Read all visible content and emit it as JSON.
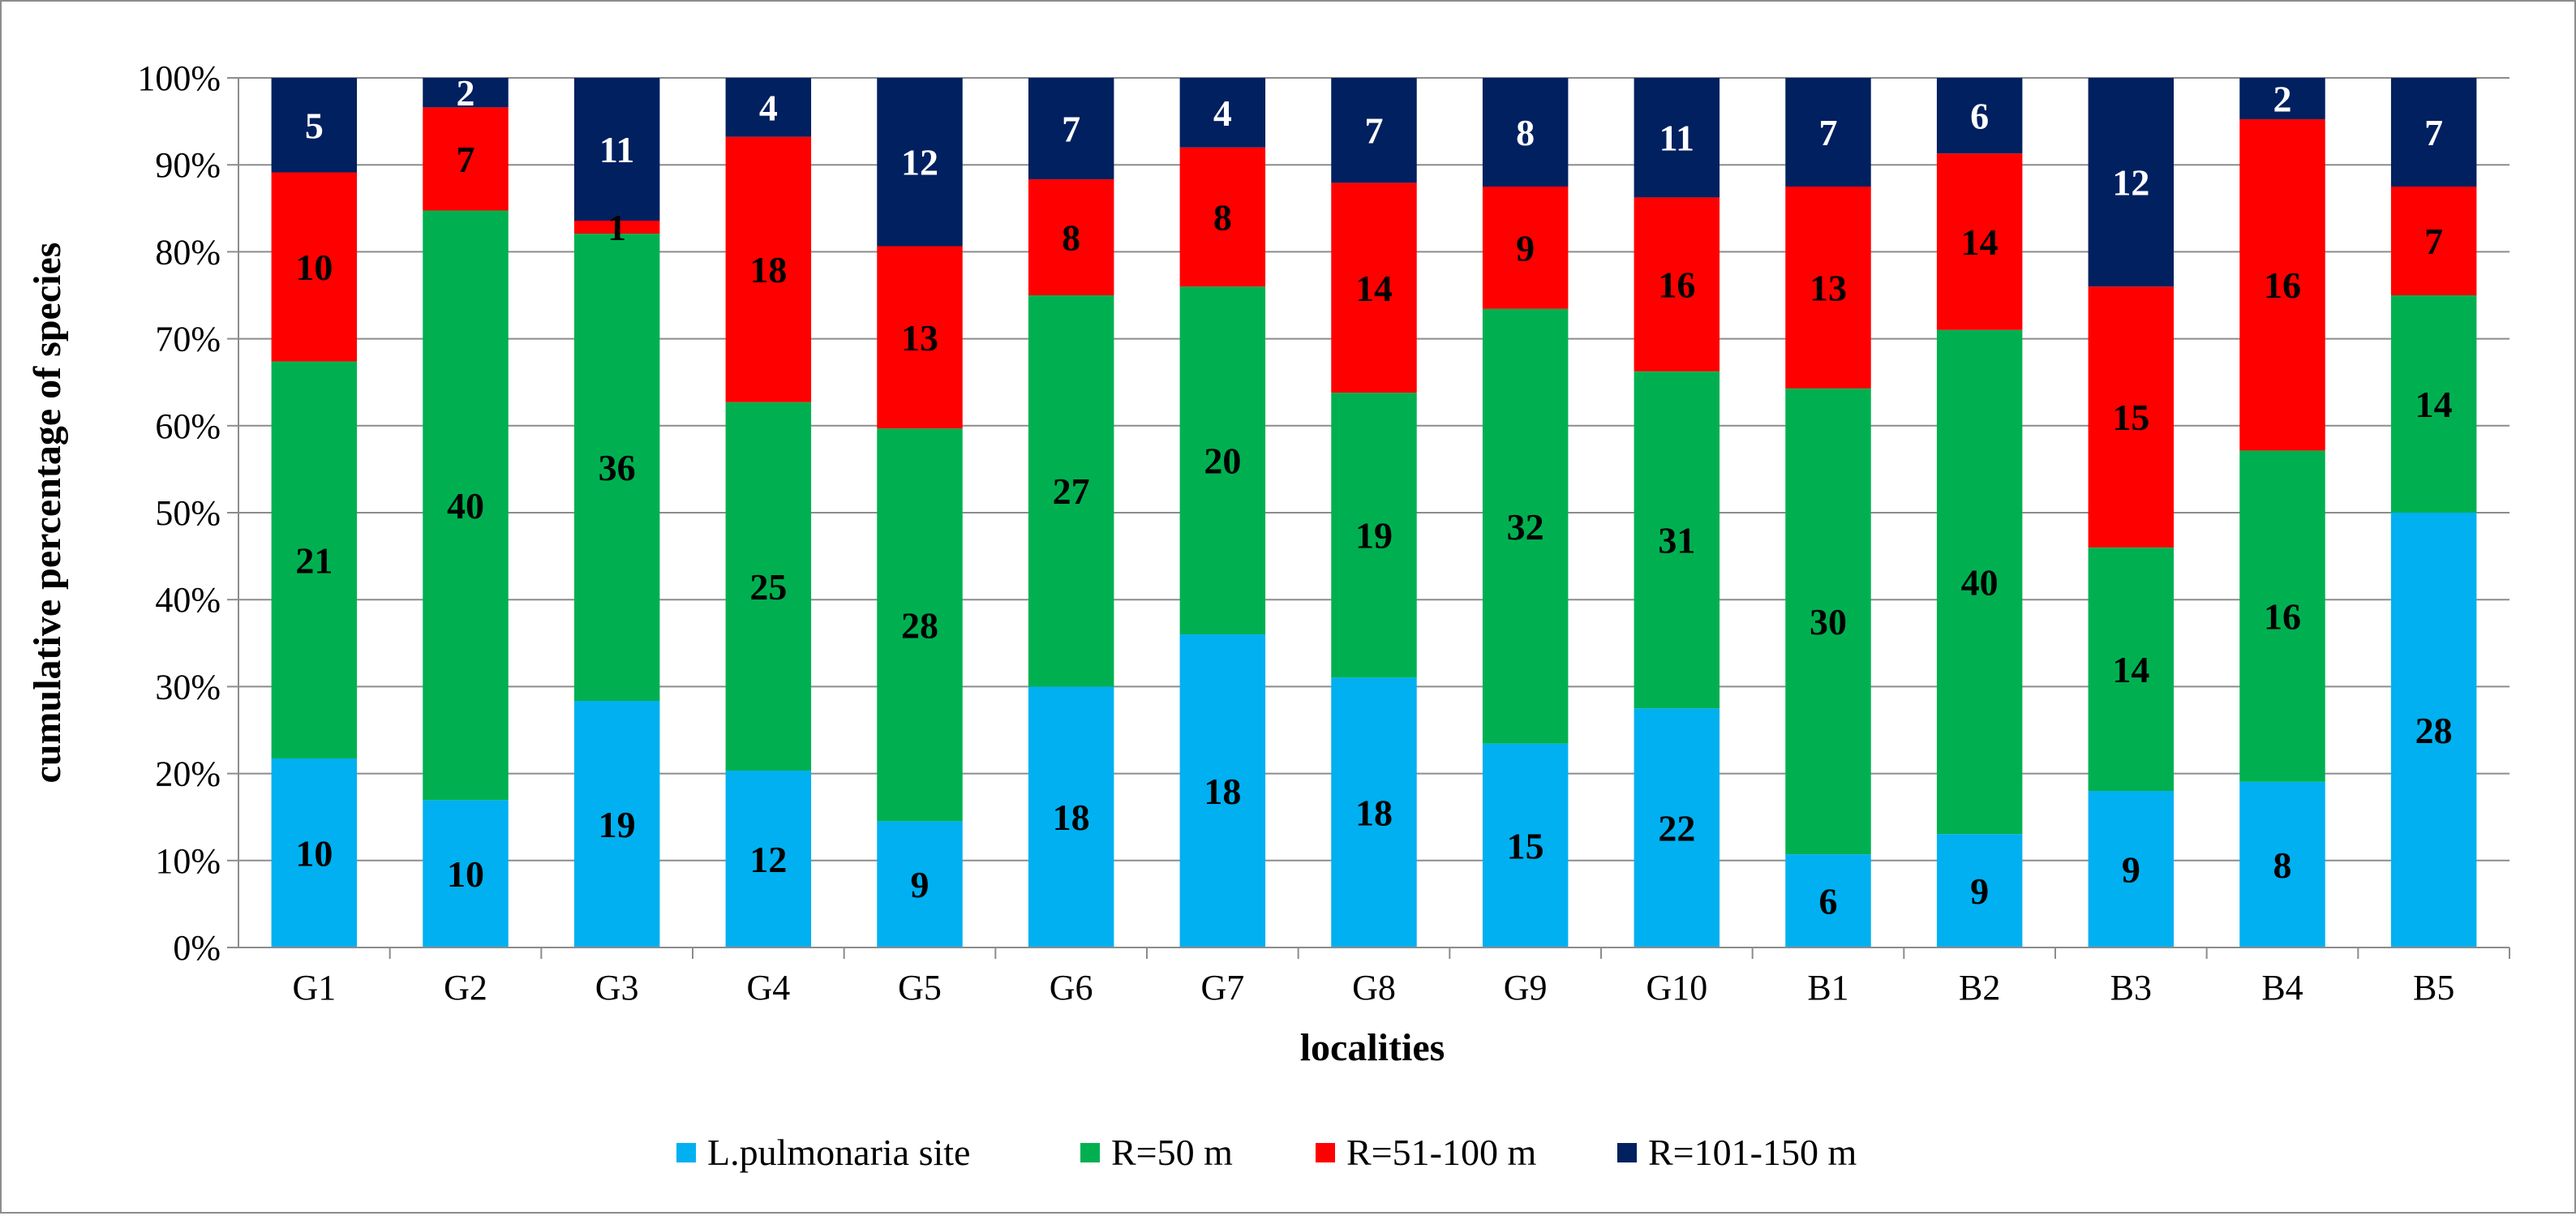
{
  "chart_data": {
    "type": "bar",
    "stacked": true,
    "percent_stacked": true,
    "title": "",
    "xlabel": "localities",
    "ylabel": "cumulative percentage of species",
    "ylim": [
      0,
      100
    ],
    "yticks": [
      "0%",
      "10%",
      "20%",
      "30%",
      "40%",
      "50%",
      "60%",
      "70%",
      "80%",
      "90%",
      "100%"
    ],
    "grid": true,
    "legend_position": "bottom",
    "categories": [
      "G1",
      "G2",
      "G3",
      "G4",
      "G5",
      "G6",
      "G7",
      "G8",
      "G9",
      "G10",
      "B1",
      "B2",
      "B3",
      "B4",
      "B5"
    ],
    "series": [
      {
        "name": "L.pulmonaria site",
        "color": "#00B0F0",
        "label_color": "#000000",
        "values": [
          10,
          10,
          19,
          12,
          9,
          18,
          18,
          18,
          15,
          22,
          6,
          9,
          9,
          8,
          28
        ]
      },
      {
        "name": "R=50 m",
        "color": "#00B050",
        "label_color": "#000000",
        "values": [
          21,
          40,
          36,
          25,
          28,
          27,
          20,
          19,
          32,
          31,
          30,
          40,
          14,
          16,
          14
        ]
      },
      {
        "name": "R=51-100 m",
        "color": "#FF0000",
        "label_color": "#000000",
        "values": [
          10,
          7,
          1,
          18,
          13,
          8,
          8,
          14,
          9,
          16,
          13,
          14,
          15,
          16,
          7
        ]
      },
      {
        "name": "R=101-150 m",
        "color": "#002060",
        "label_color": "#FFFFFF",
        "values": [
          5,
          2,
          11,
          4,
          12,
          7,
          4,
          7,
          8,
          11,
          7,
          6,
          12,
          2,
          7
        ]
      }
    ]
  }
}
